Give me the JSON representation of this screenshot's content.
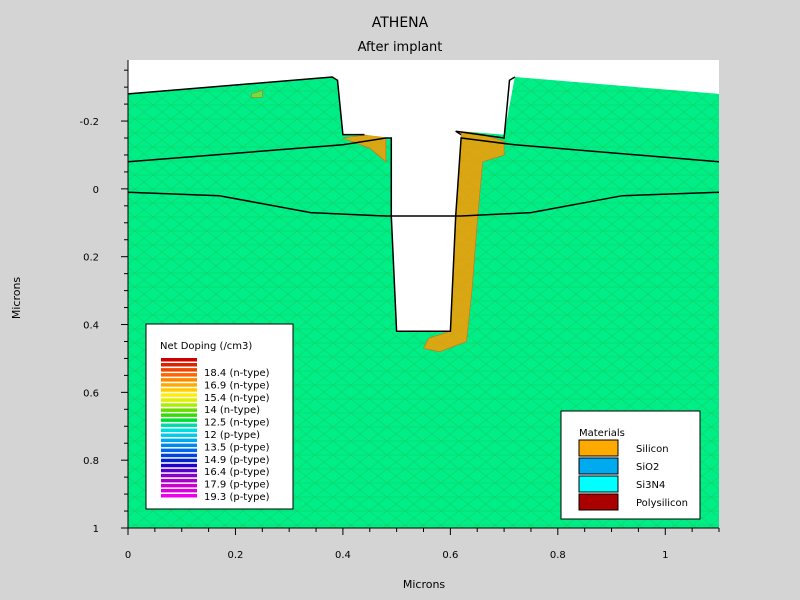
{
  "chart_data": {
    "type": "heatmap",
    "title": "ATHENA",
    "subtitle": "After implant",
    "xlabel": "Microns",
    "ylabel": "Microns",
    "xlim": [
      0,
      1.1
    ],
    "ylim": [
      1.0,
      -0.38
    ],
    "y_inverted": true,
    "x_ticks": [
      0,
      0.2,
      0.4,
      0.6,
      0.8,
      1
    ],
    "y_ticks": [
      -0.2,
      0,
      0.2,
      0.4,
      0.6,
      0.8,
      1
    ],
    "x_tick_labels": [
      "0",
      "0.2",
      "0.4",
      "0.6",
      "0.8",
      "1"
    ],
    "y_tick_labels": [
      "-0.2",
      "0",
      "0.2",
      "0.4",
      "0.6",
      "0.8",
      "1"
    ],
    "background_color": "#00ee88",
    "boundaries": [
      {
        "name": "surface-left",
        "points": [
          [
            0,
            -0.28
          ],
          [
            0.38,
            -0.33
          ],
          [
            0.39,
            -0.32
          ],
          [
            0.4,
            -0.16
          ],
          [
            0.44,
            -0.16
          ]
        ]
      },
      {
        "name": "surface-right",
        "points": [
          [
            0.72,
            -0.33
          ],
          [
            0.71,
            -0.32
          ],
          [
            0.7,
            -0.15
          ],
          [
            0.61,
            -0.17
          ],
          [
            0.62,
            -0.16
          ]
        ]
      },
      {
        "name": "oxide-interface",
        "points": [
          [
            0,
            -0.08
          ],
          [
            0.4,
            -0.13
          ],
          [
            0.48,
            -0.15
          ],
          [
            0.49,
            -0.15
          ],
          [
            0.49,
            0.08
          ],
          [
            0.5,
            0.42
          ],
          [
            0.6,
            0.42
          ],
          [
            0.61,
            0.08
          ],
          [
            0.62,
            -0.15
          ],
          [
            0.72,
            -0.13
          ],
          [
            1.1,
            -0.08
          ]
        ]
      },
      {
        "name": "silicon-interface",
        "points": [
          [
            0,
            0.01
          ],
          [
            0.17,
            0.02
          ],
          [
            0.34,
            0.07
          ],
          [
            0.48,
            0.08
          ],
          [
            0.62,
            0.08
          ],
          [
            0.75,
            0.07
          ],
          [
            0.92,
            0.02
          ],
          [
            1.1,
            0.01
          ]
        ]
      }
    ],
    "trench": {
      "points": [
        [
          0.38,
          -0.38
        ],
        [
          0.73,
          -0.38
        ],
        [
          0.72,
          -0.33
        ],
        [
          0.7,
          -0.16
        ],
        [
          0.62,
          -0.17
        ],
        [
          0.61,
          0.08
        ],
        [
          0.6,
          0.42
        ],
        [
          0.5,
          0.42
        ],
        [
          0.49,
          0.08
        ],
        [
          0.49,
          -0.15
        ],
        [
          0.44,
          -0.16
        ],
        [
          0.4,
          -0.16
        ],
        [
          0.39,
          -0.32
        ],
        [
          0.38,
          -0.33
        ]
      ]
    },
    "doping_hotspots": [
      {
        "name": "left-corner-n",
        "level": "high",
        "points": [
          [
            0.4,
            -0.15
          ],
          [
            0.45,
            -0.16
          ],
          [
            0.48,
            -0.15
          ],
          [
            0.48,
            -0.08
          ],
          [
            0.45,
            -0.12
          ]
        ]
      },
      {
        "name": "right-sidewall-n",
        "level": "high",
        "points": [
          [
            0.62,
            -0.17
          ],
          [
            0.66,
            -0.16
          ],
          [
            0.7,
            -0.14
          ],
          [
            0.7,
            -0.1
          ],
          [
            0.66,
            -0.08
          ],
          [
            0.65,
            0.1
          ],
          [
            0.64,
            0.3
          ],
          [
            0.63,
            0.45
          ],
          [
            0.58,
            0.48
          ],
          [
            0.55,
            0.47
          ],
          [
            0.56,
            0.44
          ],
          [
            0.6,
            0.42
          ],
          [
            0.61,
            0.08
          ],
          [
            0.62,
            -0.15
          ]
        ]
      },
      {
        "name": "small-speck",
        "level": "mid",
        "points": [
          [
            0.23,
            -0.28
          ],
          [
            0.25,
            -0.29
          ],
          [
            0.25,
            -0.27
          ],
          [
            0.23,
            -0.27
          ]
        ]
      }
    ],
    "legend_doping": {
      "title": "Net Doping (/cm3)",
      "entries": [
        {
          "label": "18.4 (n-type)"
        },
        {
          "label": "16.9 (n-type)"
        },
        {
          "label": "15.4 (n-type)"
        },
        {
          "label": "14 (n-type)"
        },
        {
          "label": "12.5 (n-type)"
        },
        {
          "label": "12 (p-type)"
        },
        {
          "label": "13.5 (p-type)"
        },
        {
          "label": "14.9 (p-type)"
        },
        {
          "label": "16.4 (p-type)"
        },
        {
          "label": "17.9 (p-type)"
        },
        {
          "label": "19.3 (p-type)"
        }
      ],
      "colors": [
        "#cc0000",
        "#dd2200",
        "#ee4400",
        "#ff6600",
        "#ff8800",
        "#ffaa00",
        "#ffcc00",
        "#ffee00",
        "#ddee00",
        "#aaee00",
        "#66dd00",
        "#33dd00",
        "#00dd33",
        "#00ddaa",
        "#00dddd",
        "#00ccee",
        "#00aaee",
        "#0088ee",
        "#0066ee",
        "#0044dd",
        "#0022cc",
        "#2200cc",
        "#5500cc",
        "#8800cc",
        "#aa00cc",
        "#cc00cc",
        "#dd00dd",
        "#ee00ee"
      ]
    },
    "legend_materials": {
      "title": "Materials",
      "entries": [
        {
          "label": "Silicon",
          "color": "#ffaa00"
        },
        {
          "label": "SiO2",
          "color": "#00aaee"
        },
        {
          "label": "Si3N4",
          "color": "#00ffff"
        },
        {
          "label": "Polysilicon",
          "color": "#aa0000"
        }
      ]
    }
  }
}
